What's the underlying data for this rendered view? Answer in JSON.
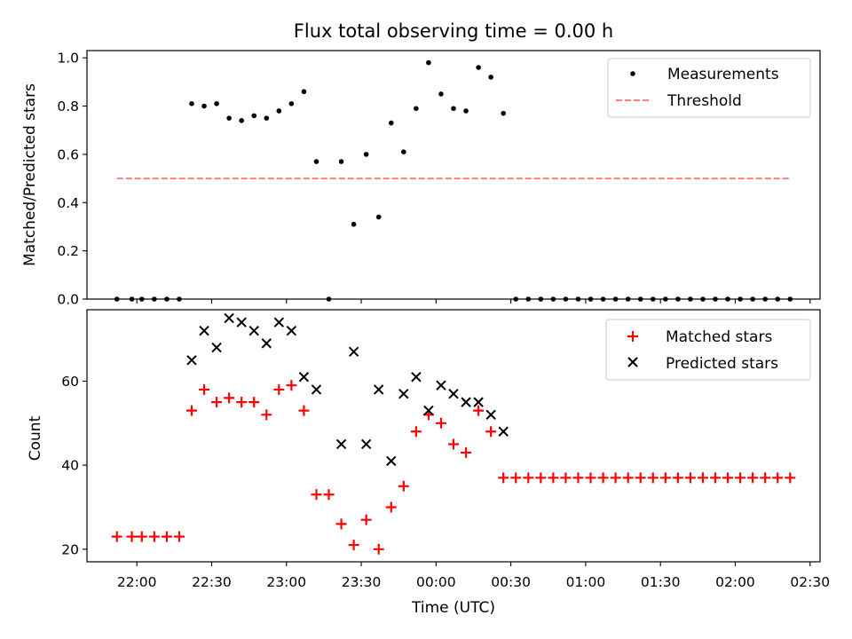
{
  "chart_data": [
    {
      "type": "scatter",
      "title": "Flux total observing time = 0.00 h",
      "xlabel": "",
      "ylabel": "Matched/Predicted stars",
      "ylim": [
        0,
        1.03
      ],
      "yticks": [
        "0.0",
        "0.2",
        "0.4",
        "0.6",
        "0.8",
        "1.0"
      ],
      "xticks_shared": true,
      "legend": {
        "position": "top-right",
        "entries": [
          "Measurements",
          "Threshold"
        ]
      },
      "series": [
        {
          "name": "Measurements",
          "color": "#000000",
          "marker": "dot",
          "points": [
            [
              "21:52",
              0.0
            ],
            [
              "21:58",
              0.0
            ],
            [
              "22:02",
              0.0
            ],
            [
              "22:07",
              0.0
            ],
            [
              "22:12",
              0.0
            ],
            [
              "22:17",
              0.0
            ],
            [
              "22:22",
              0.81
            ],
            [
              "22:27",
              0.8
            ],
            [
              "22:32",
              0.81
            ],
            [
              "22:37",
              0.75
            ],
            [
              "22:42",
              0.74
            ],
            [
              "22:47",
              0.76
            ],
            [
              "22:52",
              0.75
            ],
            [
              "22:57",
              0.78
            ],
            [
              "23:02",
              0.81
            ],
            [
              "23:07",
              0.86
            ],
            [
              "23:12",
              0.57
            ],
            [
              "23:17",
              0.0
            ],
            [
              "23:22",
              0.57
            ],
            [
              "23:27",
              0.31
            ],
            [
              "23:32",
              0.6
            ],
            [
              "23:37",
              0.34
            ],
            [
              "23:42",
              0.73
            ],
            [
              "23:47",
              0.61
            ],
            [
              "23:52",
              0.79
            ],
            [
              "23:57",
              0.98
            ],
            [
              "00:02",
              0.85
            ],
            [
              "00:07",
              0.79
            ],
            [
              "00:12",
              0.78
            ],
            [
              "00:17",
              0.96
            ],
            [
              "00:22",
              0.92
            ],
            [
              "00:27",
              0.77
            ],
            [
              "00:32",
              0.0
            ],
            [
              "00:37",
              0.0
            ],
            [
              "00:42",
              0.0
            ],
            [
              "00:47",
              0.0
            ],
            [
              "00:52",
              0.0
            ],
            [
              "00:57",
              0.0
            ],
            [
              "01:02",
              0.0
            ],
            [
              "01:07",
              0.0
            ],
            [
              "01:12",
              0.0
            ],
            [
              "01:17",
              0.0
            ],
            [
              "01:22",
              0.0
            ],
            [
              "01:27",
              0.0
            ],
            [
              "01:32",
              0.0
            ],
            [
              "01:37",
              0.0
            ],
            [
              "01:42",
              0.0
            ],
            [
              "01:47",
              0.0
            ],
            [
              "01:52",
              0.0
            ],
            [
              "01:57",
              0.0
            ],
            [
              "02:02",
              0.0
            ],
            [
              "02:07",
              0.0
            ],
            [
              "02:12",
              0.0
            ],
            [
              "02:17",
              0.0
            ],
            [
              "02:22",
              0.0
            ]
          ]
        },
        {
          "name": "Threshold",
          "color": "#ff7f7f",
          "style": "dashed",
          "x": [
            "21:52",
            "02:22"
          ],
          "y": [
            0.5,
            0.5
          ]
        }
      ]
    },
    {
      "type": "scatter",
      "title": "",
      "xlabel": "Time (UTC)",
      "ylabel": "Count",
      "ylim": [
        17,
        77
      ],
      "yticks": [
        "20",
        "40",
        "60"
      ],
      "xticks": [
        "22:00",
        "22:30",
        "23:00",
        "23:30",
        "00:00",
        "00:30",
        "01:00",
        "01:30",
        "02:00",
        "02:30"
      ],
      "legend": {
        "position": "top-right",
        "entries": [
          "Matched stars",
          "Predicted stars"
        ]
      },
      "series": [
        {
          "name": "Matched stars",
          "color": "#ff0000",
          "marker": "plus",
          "points": [
            [
              "21:52",
              23
            ],
            [
              "21:58",
              23
            ],
            [
              "22:02",
              23
            ],
            [
              "22:07",
              23
            ],
            [
              "22:12",
              23
            ],
            [
              "22:17",
              23
            ],
            [
              "22:22",
              53
            ],
            [
              "22:27",
              58
            ],
            [
              "22:32",
              55
            ],
            [
              "22:37",
              56
            ],
            [
              "22:42",
              55
            ],
            [
              "22:47",
              55
            ],
            [
              "22:52",
              52
            ],
            [
              "22:57",
              58
            ],
            [
              "23:02",
              59
            ],
            [
              "23:07",
              53
            ],
            [
              "23:12",
              33
            ],
            [
              "23:17",
              33
            ],
            [
              "23:22",
              26
            ],
            [
              "23:27",
              21
            ],
            [
              "23:32",
              27
            ],
            [
              "23:37",
              20
            ],
            [
              "23:42",
              30
            ],
            [
              "23:47",
              35
            ],
            [
              "23:52",
              48
            ],
            [
              "23:57",
              52
            ],
            [
              "00:02",
              50
            ],
            [
              "00:07",
              45
            ],
            [
              "00:12",
              43
            ],
            [
              "00:17",
              53
            ],
            [
              "00:22",
              48
            ],
            [
              "00:27",
              37
            ],
            [
              "00:32",
              37
            ],
            [
              "00:37",
              37
            ],
            [
              "00:42",
              37
            ],
            [
              "00:47",
              37
            ],
            [
              "00:52",
              37
            ],
            [
              "00:57",
              37
            ],
            [
              "01:02",
              37
            ],
            [
              "01:07",
              37
            ],
            [
              "01:12",
              37
            ],
            [
              "01:17",
              37
            ],
            [
              "01:22",
              37
            ],
            [
              "01:27",
              37
            ],
            [
              "01:32",
              37
            ],
            [
              "01:37",
              37
            ],
            [
              "01:42",
              37
            ],
            [
              "01:47",
              37
            ],
            [
              "01:52",
              37
            ],
            [
              "01:57",
              37
            ],
            [
              "02:02",
              37
            ],
            [
              "02:07",
              37
            ],
            [
              "02:12",
              37
            ],
            [
              "02:17",
              37
            ],
            [
              "02:22",
              37
            ]
          ]
        },
        {
          "name": "Predicted stars",
          "color": "#000000",
          "marker": "x",
          "points": [
            [
              "22:22",
              65
            ],
            [
              "22:27",
              72
            ],
            [
              "22:32",
              68
            ],
            [
              "22:37",
              75
            ],
            [
              "22:42",
              74
            ],
            [
              "22:47",
              72
            ],
            [
              "22:52",
              69
            ],
            [
              "22:57",
              74
            ],
            [
              "23:02",
              72
            ],
            [
              "23:07",
              61
            ],
            [
              "23:12",
              58
            ],
            [
              "23:22",
              45
            ],
            [
              "23:27",
              67
            ],
            [
              "23:32",
              45
            ],
            [
              "23:37",
              58
            ],
            [
              "23:42",
              41
            ],
            [
              "23:47",
              57
            ],
            [
              "23:52",
              61
            ],
            [
              "23:57",
              53
            ],
            [
              "00:02",
              59
            ],
            [
              "00:07",
              57
            ],
            [
              "00:12",
              55
            ],
            [
              "00:17",
              55
            ],
            [
              "00:22",
              52
            ],
            [
              "00:27",
              48
            ]
          ]
        }
      ]
    }
  ]
}
